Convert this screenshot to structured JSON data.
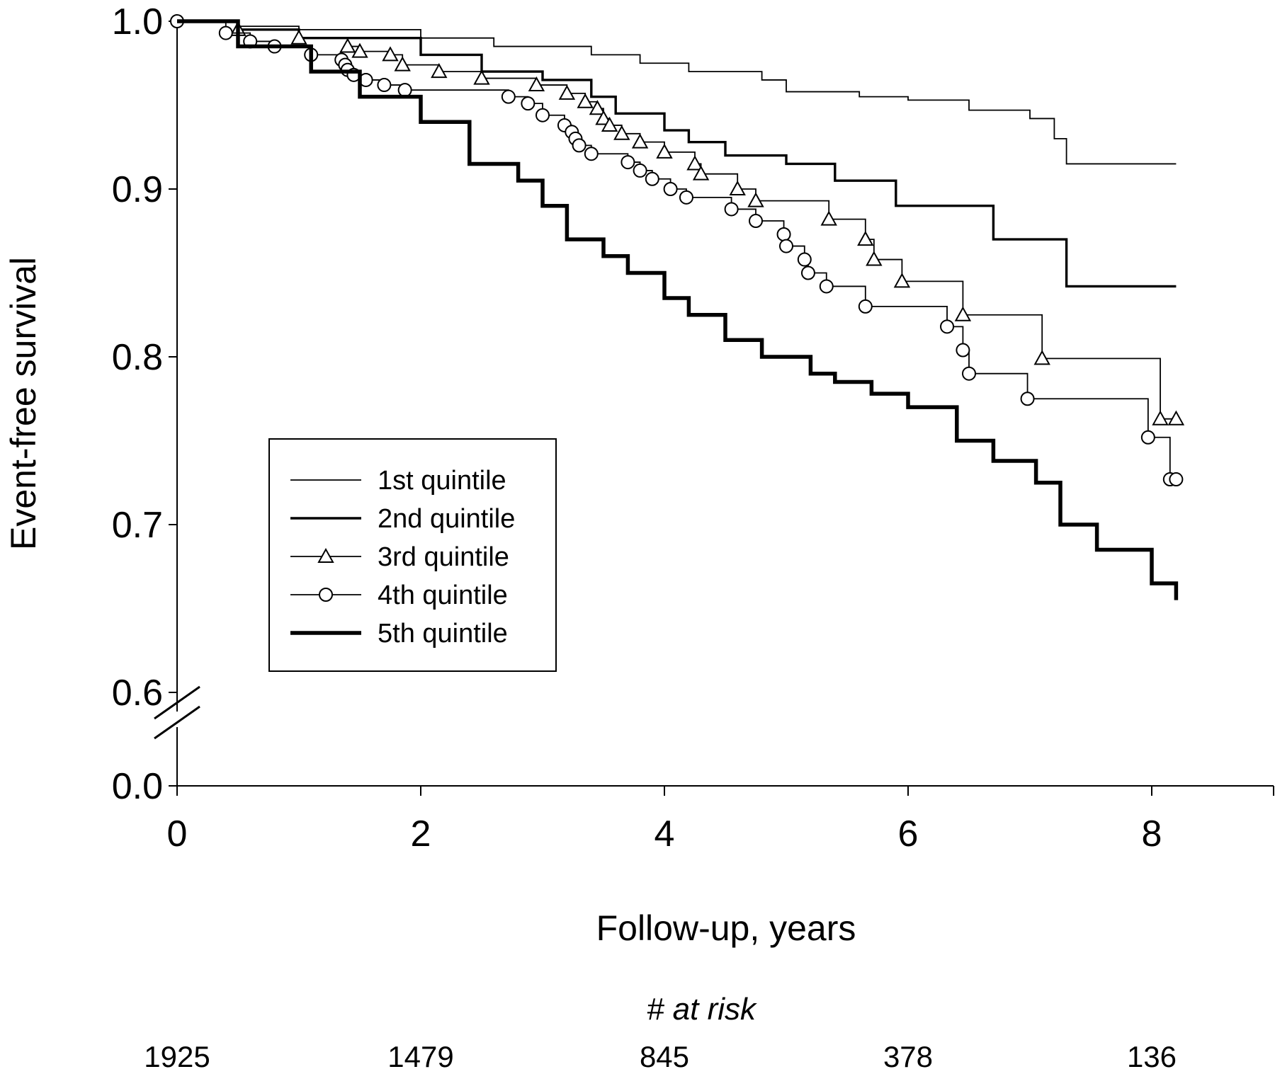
{
  "chart_data": {
    "type": "line",
    "ylabel": "Event-free survival",
    "xlabel": "Follow-up, years",
    "xlim": [
      0,
      9
    ],
    "ylim": [
      0.6,
      1.0
    ],
    "y_axis_break": true,
    "x_ticks": [
      0,
      2,
      4,
      6,
      8
    ],
    "x_tick_labels": [
      "0",
      "2",
      "4",
      "6",
      "8"
    ],
    "y_ticks": [
      1.0,
      0.9,
      0.8,
      0.7,
      0.6
    ],
    "y_tick_labels": [
      "1.0",
      "0.9",
      "0.8",
      "0.7",
      "0.6"
    ],
    "y_break_label": "0.0",
    "legend_position": "center-left",
    "at_risk": {
      "title": "# at risk",
      "x": [
        0,
        2,
        4,
        6,
        8
      ],
      "values": [
        "1925",
        "1479",
        "845",
        "378",
        "136"
      ]
    },
    "series": [
      {
        "name": "1st quintile",
        "style": "thin",
        "marker": "none",
        "x": [
          0,
          0.5,
          1.0,
          2.0,
          2.6,
          3.4,
          3.8,
          4.2,
          4.8,
          5.0,
          5.6,
          6.0,
          6.5,
          7.0,
          7.2,
          7.3,
          8.2
        ],
        "y": [
          1.0,
          0.997,
          0.995,
          0.99,
          0.985,
          0.98,
          0.975,
          0.97,
          0.965,
          0.958,
          0.955,
          0.953,
          0.947,
          0.942,
          0.93,
          0.915,
          0.915
        ]
      },
      {
        "name": "2nd quintile",
        "style": "medium",
        "marker": "none",
        "x": [
          0,
          0.5,
          1.0,
          2.0,
          2.5,
          3.0,
          3.4,
          3.6,
          4.0,
          4.2,
          4.5,
          5.0,
          5.4,
          5.9,
          6.7,
          7.3,
          8.2
        ],
        "y": [
          1.0,
          0.995,
          0.99,
          0.98,
          0.97,
          0.965,
          0.955,
          0.945,
          0.935,
          0.928,
          0.92,
          0.915,
          0.905,
          0.89,
          0.87,
          0.842,
          0.842
        ]
      },
      {
        "name": "3rd quintile",
        "style": "thin",
        "marker": "triangle",
        "x": [
          0,
          0.5,
          1.0,
          1.4,
          1.5,
          1.75,
          1.85,
          2.15,
          2.5,
          2.95,
          3.2,
          3.35,
          3.45,
          3.5,
          3.55,
          3.65,
          3.8,
          4.0,
          4.25,
          4.3,
          4.6,
          4.75,
          5.35,
          5.65,
          5.72,
          5.95,
          6.45,
          7.1,
          8.07,
          8.2
        ],
        "y": [
          1.0,
          0.995,
          0.99,
          0.985,
          0.982,
          0.98,
          0.974,
          0.97,
          0.966,
          0.962,
          0.957,
          0.952,
          0.948,
          0.942,
          0.938,
          0.933,
          0.928,
          0.922,
          0.915,
          0.909,
          0.9,
          0.893,
          0.882,
          0.87,
          0.858,
          0.845,
          0.825,
          0.799,
          0.763,
          0.763
        ]
      },
      {
        "name": "4th quintile",
        "style": "thin",
        "marker": "circle",
        "x": [
          0,
          0.4,
          0.6,
          0.8,
          1.1,
          1.35,
          1.38,
          1.4,
          1.45,
          1.55,
          1.7,
          1.87,
          2.72,
          2.88,
          3.0,
          3.18,
          3.24,
          3.27,
          3.3,
          3.4,
          3.7,
          3.8,
          3.9,
          4.05,
          4.18,
          4.55,
          4.75,
          4.98,
          5.0,
          5.15,
          5.18,
          5.33,
          5.65,
          6.32,
          6.45,
          6.5,
          6.98,
          7.97,
          8.15,
          8.2
        ],
        "y": [
          1.0,
          0.993,
          0.988,
          0.985,
          0.98,
          0.977,
          0.974,
          0.971,
          0.968,
          0.965,
          0.962,
          0.959,
          0.955,
          0.951,
          0.944,
          0.938,
          0.934,
          0.93,
          0.926,
          0.921,
          0.916,
          0.911,
          0.906,
          0.9,
          0.895,
          0.888,
          0.881,
          0.873,
          0.866,
          0.858,
          0.85,
          0.842,
          0.83,
          0.818,
          0.804,
          0.79,
          0.775,
          0.752,
          0.727,
          0.727
        ]
      },
      {
        "name": "5th quintile",
        "style": "thick",
        "marker": "none",
        "x": [
          0,
          0.5,
          1.1,
          1.5,
          2.0,
          2.4,
          2.8,
          3.0,
          3.2,
          3.5,
          3.7,
          4.0,
          4.2,
          4.5,
          4.8,
          5.2,
          5.4,
          5.7,
          6.0,
          6.4,
          6.7,
          7.05,
          7.25,
          7.55,
          8.0,
          8.2
        ],
        "y": [
          1.0,
          0.985,
          0.97,
          0.955,
          0.94,
          0.915,
          0.905,
          0.89,
          0.87,
          0.86,
          0.85,
          0.835,
          0.825,
          0.81,
          0.8,
          0.79,
          0.785,
          0.778,
          0.77,
          0.75,
          0.738,
          0.725,
          0.7,
          0.685,
          0.665,
          0.655
        ]
      }
    ]
  }
}
